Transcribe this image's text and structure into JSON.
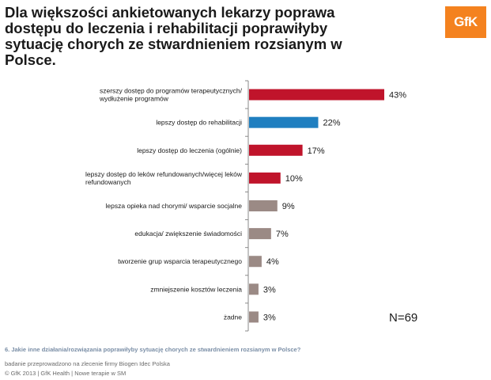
{
  "title": "Dla większości ankietowanych lekarzy poprawa dostępu do leczenia i rehabilitacji  poprawiłyby sytuację chorych ze stwardnieniem rozsianym w Polsce.",
  "logo_text": "GfK",
  "n_label": "N=69",
  "footer": {
    "question": "6. Jakie inne działania/rozwiązania poprawiłyby sytuację chorych ze stwardnieniem rozsianym w Polsce?",
    "source": "badanie przeprowadzono na zlecenie firmy Biogen Idec Polska",
    "copyright": "© GfK 2013 | GfK Health | Nowe terapie w SM"
  },
  "colors": {
    "red": "#c0142b",
    "blue": "#1f7fc0",
    "gray": "#9b8a85",
    "logo": "#f4821f"
  },
  "chart_data": {
    "type": "bar",
    "orientation": "horizontal",
    "categories": [
      [
        "szerszy dostęp do programów terapeutycznych/",
        "wydłużenie programów"
      ],
      [
        "lepszy dostęp do rehabilitacji"
      ],
      [
        "lepszy dostęp do leczenia (ogólnie)"
      ],
      [
        "lepszy dostęp do leków refundowanych/więcej leków",
        "refundowanych"
      ],
      [
        "lepsza opieka nad chorymi/ wsparcie socjalne"
      ],
      [
        "edukacja/ zwiększenie świadomości"
      ],
      [
        "tworzenie grup wsparcia terapeutycznego"
      ],
      [
        "zmniejszenie kosztów leczenia"
      ],
      [
        "żadne"
      ]
    ],
    "values": [
      43,
      22,
      17,
      10,
      9,
      7,
      4,
      3,
      3
    ],
    "value_labels": [
      "43%",
      "22%",
      "17%",
      "10%",
      "9%",
      "7%",
      "4%",
      "3%",
      "3%"
    ],
    "bar_colors": [
      "red",
      "blue",
      "red",
      "red",
      "gray",
      "gray",
      "gray",
      "gray",
      "gray"
    ],
    "xlim": [
      0,
      50
    ],
    "grid": false,
    "legend": "none"
  }
}
